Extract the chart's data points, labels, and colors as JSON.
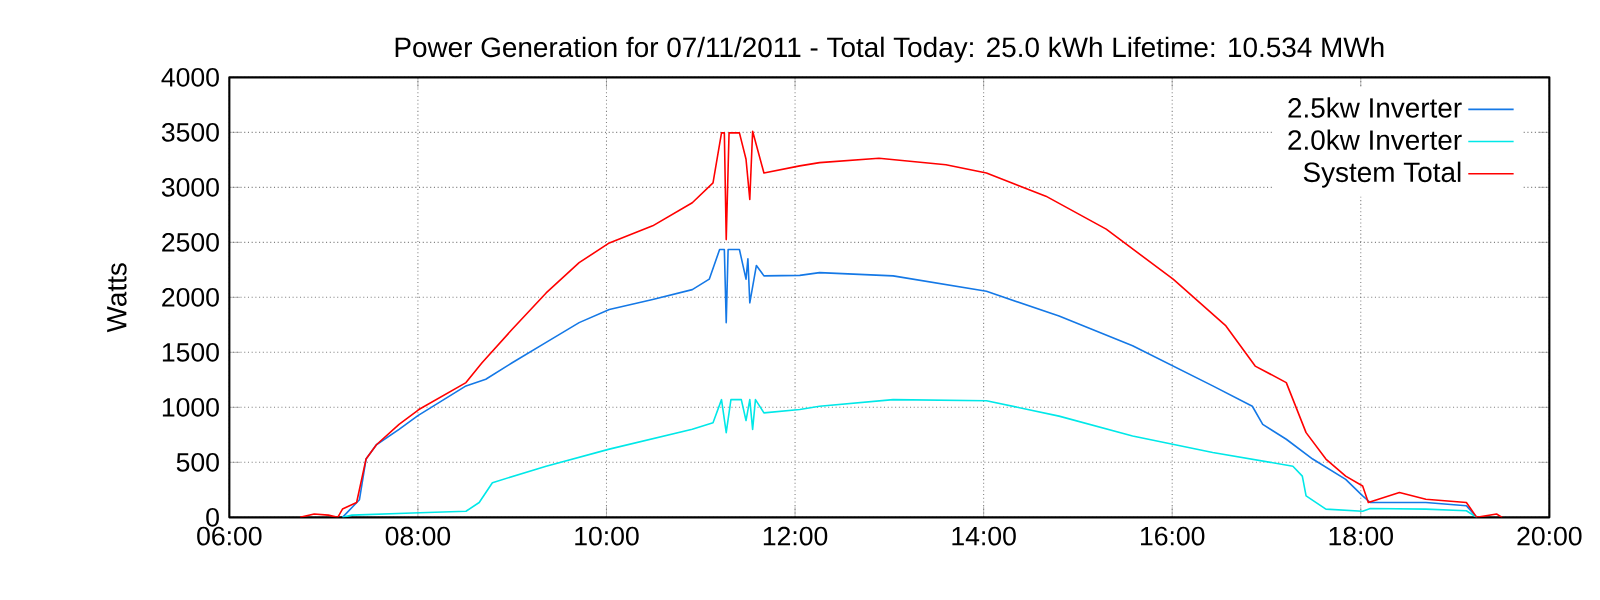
{
  "chart_data": {
    "type": "line",
    "title": "Power Generation for 07/11/2011 - Total Today: 25.0 kWh   Lifetime: 10.534 MWh",
    "ylabel": "Watts",
    "xlim": [
      6,
      20
    ],
    "ylim": [
      0,
      4000
    ],
    "xticks": [
      {
        "value": 6,
        "label": "06:00"
      },
      {
        "value": 8,
        "label": "08:00"
      },
      {
        "value": 10,
        "label": "10:00"
      },
      {
        "value": 12,
        "label": "12:00"
      },
      {
        "value": 14,
        "label": "14:00"
      },
      {
        "value": 16,
        "label": "16:00"
      },
      {
        "value": 18,
        "label": "18:00"
      },
      {
        "value": 20,
        "label": "20:00"
      }
    ],
    "yticks": [
      0,
      500,
      1000,
      1500,
      2000,
      2500,
      3000,
      3500,
      4000
    ],
    "grid": true,
    "legend": "top right",
    "marker": "none",
    "line_style": "solid",
    "series": [
      {
        "name": "2.5kw Inverter",
        "color": "#1478e6",
        "x": [
          7.2,
          7.38,
          7.45,
          7.56,
          7.8,
          8.0,
          8.51,
          8.72,
          9.0,
          9.36,
          9.71,
          10.03,
          10.49,
          10.91,
          11.09,
          11.2,
          11.25,
          11.27,
          11.29,
          11.41,
          11.48,
          11.5,
          11.52,
          11.59,
          11.67,
          12.05,
          12.26,
          13.04,
          14.03,
          14.8,
          15.58,
          16.43,
          16.85,
          16.96,
          17.21,
          17.49,
          17.84,
          18.02,
          18.1,
          18.69,
          19.12,
          19.23
        ],
        "values": [
          0,
          160,
          530,
          660,
          800,
          925,
          1195,
          1255,
          1405,
          1590,
          1770,
          1890,
          1980,
          2070,
          2165,
          2435,
          2435,
          1770,
          2435,
          2435,
          2165,
          2350,
          1950,
          2290,
          2195,
          2200,
          2225,
          2195,
          2055,
          1830,
          1560,
          1195,
          1010,
          845,
          710,
          530,
          345,
          195,
          135,
          135,
          105,
          0
        ]
      },
      {
        "name": "2.0kw Inverter",
        "color": "#00e8e8",
        "x": [
          7.2,
          7.3,
          7.94,
          8.51,
          8.65,
          8.79,
          9.36,
          10.03,
          10.91,
          11.13,
          11.22,
          11.27,
          11.32,
          11.43,
          11.48,
          11.52,
          11.55,
          11.58,
          11.67,
          12.05,
          12.26,
          13.04,
          14.03,
          14.8,
          15.58,
          16.43,
          17.28,
          17.38,
          17.42,
          17.63,
          18.02,
          18.1,
          18.69,
          19.12,
          19.23
        ],
        "values": [
          0,
          20,
          40,
          55,
          135,
          315,
          465,
          620,
          800,
          860,
          1070,
          770,
          1070,
          1070,
          880,
          1070,
          800,
          1070,
          950,
          980,
          1010,
          1070,
          1060,
          920,
          740,
          590,
          465,
          375,
          195,
          75,
          55,
          80,
          75,
          60,
          0
        ]
      },
      {
        "name": "System Total",
        "color": "#ff0000",
        "x": [
          6.75,
          6.9,
          7.05,
          7.15,
          7.2,
          7.35,
          7.45,
          7.56,
          7.8,
          8.01,
          8.51,
          8.68,
          9.0,
          9.36,
          9.71,
          10.03,
          10.49,
          10.91,
          11.13,
          11.22,
          11.25,
          11.27,
          11.3,
          11.41,
          11.48,
          11.52,
          11.55,
          11.67,
          12.05,
          12.26,
          12.89,
          13.6,
          14.03,
          14.66,
          15.3,
          16.01,
          16.57,
          16.88,
          17.21,
          17.42,
          17.63,
          17.84,
          18.02,
          18.08,
          18.41,
          18.69,
          19.12,
          19.23,
          19.44,
          19.5
        ],
        "values": [
          0,
          30,
          20,
          0,
          75,
          135,
          530,
          660,
          845,
          980,
          1225,
          1405,
          1710,
          2040,
          2315,
          2495,
          2650,
          2860,
          3040,
          3495,
          3495,
          2525,
          3495,
          3495,
          3255,
          2890,
          3510,
          3130,
          3195,
          3225,
          3265,
          3205,
          3130,
          2920,
          2620,
          2165,
          1740,
          1375,
          1225,
          770,
          530,
          375,
          285,
          135,
          225,
          165,
          135,
          0,
          30,
          0
        ]
      }
    ]
  }
}
